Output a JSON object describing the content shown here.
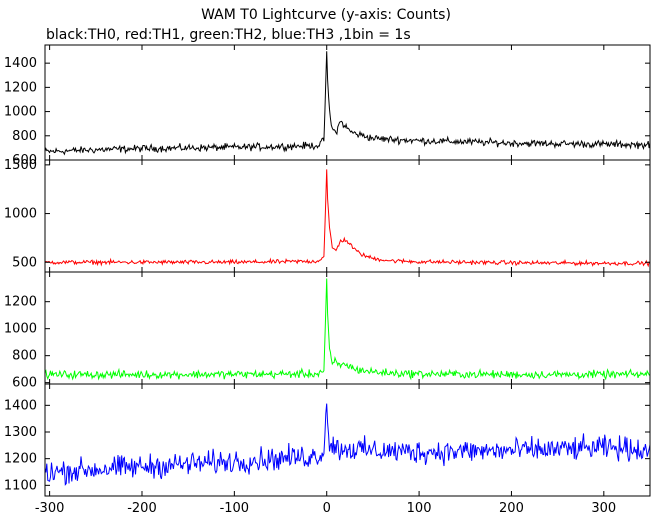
{
  "title": "WAM T0 Lightcurve (y-axis: Counts)",
  "subtitle": "black:TH0, red:TH1, green:TH2, blue:TH3 ,1bin = 1s",
  "chart_data": {
    "type": "line",
    "xlim": [
      -305,
      350
    ],
    "x_ticks": [
      -300,
      -200,
      -100,
      0,
      100,
      200,
      300
    ],
    "x_tick_labels": [
      "-300",
      "-200",
      "-100",
      "0",
      "100",
      "200",
      "300"
    ],
    "panels": [
      {
        "name": "TH0",
        "color": "#000000",
        "ylim": [
          600,
          1550
        ],
        "y_ticks": [
          600,
          800,
          1000,
          1200,
          1400
        ],
        "y_tick_labels": [
          "600",
          "800",
          "1000",
          "1200",
          "1400"
        ],
        "series": {
          "x": [
            -300,
            -250,
            -200,
            -150,
            -100,
            -50,
            -10,
            -3,
            0,
            1,
            3,
            6,
            10,
            15,
            20,
            25,
            30,
            40,
            50,
            70,
            100,
            150,
            200,
            250,
            300,
            345
          ],
          "y": [
            670,
            685,
            695,
            700,
            705,
            712,
            720,
            760,
            1500,
            1250,
            1000,
            850,
            830,
            920,
            880,
            840,
            820,
            800,
            780,
            770,
            760,
            750,
            740,
            735,
            730,
            725
          ],
          "noise": 25
        }
      },
      {
        "name": "TH1",
        "color": "#ff0000",
        "ylim": [
          400,
          1550
        ],
        "y_ticks": [
          500,
          1000,
          1500
        ],
        "y_tick_labels": [
          "500",
          "1000",
          "1500"
        ],
        "series": {
          "x": [
            -300,
            -200,
            -100,
            -10,
            -3,
            0,
            1,
            3,
            6,
            10,
            15,
            20,
            25,
            30,
            40,
            50,
            70,
            100,
            200,
            300,
            345
          ],
          "y": [
            500,
            500,
            500,
            510,
            560,
            1450,
            1150,
            850,
            650,
            620,
            720,
            730,
            690,
            630,
            570,
            540,
            515,
            505,
            495,
            490,
            490
          ],
          "noise": 18
        }
      },
      {
        "name": "TH2",
        "color": "#00ff00",
        "ylim": [
          590,
          1420
        ],
        "y_ticks": [
          600,
          800,
          1000,
          1200
        ],
        "y_tick_labels": [
          "600",
          "800",
          "1000",
          "1200"
        ],
        "series": {
          "x": [
            -300,
            -200,
            -100,
            -10,
            -3,
            0,
            1,
            3,
            6,
            10,
            15,
            20,
            30,
            40,
            50,
            70,
            100,
            200,
            300,
            345
          ],
          "y": [
            660,
            660,
            662,
            665,
            690,
            1370,
            1100,
            850,
            730,
            760,
            720,
            740,
            700,
            690,
            680,
            670,
            665,
            660,
            660,
            662
          ],
          "noise": 25
        }
      },
      {
        "name": "TH3",
        "color": "#0000ff",
        "ylim": [
          1060,
          1480
        ],
        "y_ticks": [
          1100,
          1200,
          1300,
          1400
        ],
        "y_tick_labels": [
          "1100",
          "1200",
          "1300",
          "1400"
        ],
        "series": {
          "x": [
            -300,
            -200,
            -100,
            -10,
            -3,
            0,
            1,
            3,
            10,
            50,
            100,
            200,
            300,
            345
          ],
          "y": [
            1150,
            1170,
            1190,
            1210,
            1230,
            1420,
            1330,
            1260,
            1240,
            1230,
            1225,
            1230,
            1240,
            1235
          ],
          "noise": 38
        }
      }
    ]
  }
}
